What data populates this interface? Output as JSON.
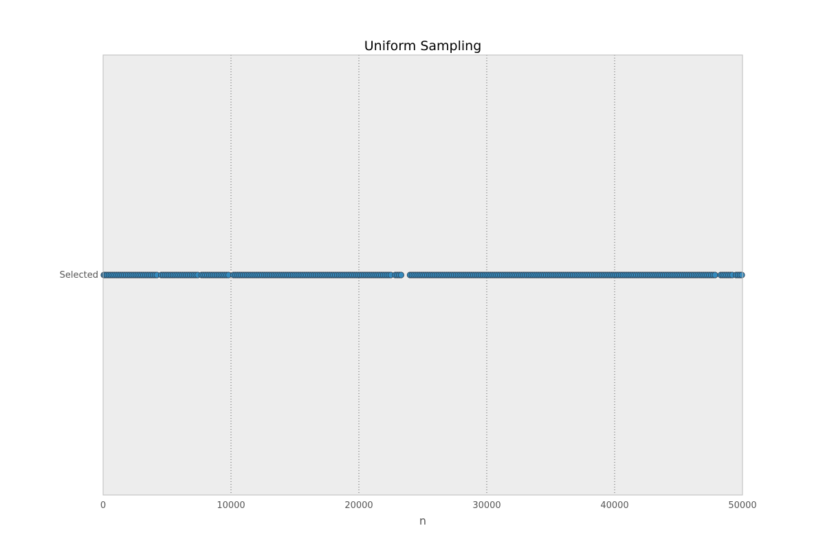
{
  "chart_data": {
    "type": "scatter",
    "title": "Uniform Sampling",
    "xlabel": "n",
    "ylabel": "",
    "xlim": [
      0,
      50000
    ],
    "xticks": [
      "0",
      "10000",
      "20000",
      "30000",
      "40000",
      "50000"
    ],
    "yticks": [
      "Selected"
    ],
    "grid": "x-dotted",
    "legend": "none",
    "colors": {
      "background": "#ededed",
      "frame": "#bcbcbc",
      "grid": "#555555",
      "marker_fill": "#348abd",
      "marker_edge": "#2b3a4a"
    },
    "series": [
      {
        "category": "Selected",
        "x": [
          0,
          150,
          300,
          450,
          600,
          750,
          900,
          1050,
          1200,
          1350,
          1500,
          1650,
          1800,
          1950,
          2100,
          2250,
          2400,
          2550,
          2700,
          2850,
          3000,
          3150,
          3300,
          3450,
          3600,
          3750,
          3900,
          4050,
          4200,
          4550,
          4700,
          4850,
          5000,
          5150,
          5300,
          5450,
          5600,
          5750,
          5900,
          6050,
          6200,
          6350,
          6500,
          6650,
          6800,
          6950,
          7100,
          7250,
          7400,
          7700,
          7850,
          8000,
          8150,
          8300,
          8450,
          8600,
          8750,
          8900,
          9050,
          9200,
          9350,
          9500,
          9650,
          9800,
          10200,
          10350,
          10500,
          10650,
          10800,
          10950,
          11100,
          11250,
          11400,
          11550,
          11700,
          11850,
          12000,
          12150,
          12300,
          12450,
          12600,
          12750,
          12900,
          13050,
          13200,
          13350,
          13500,
          13650,
          13800,
          13950,
          14100,
          14250,
          14400,
          14550,
          14700,
          14850,
          15000,
          15150,
          15300,
          15450,
          15600,
          15750,
          15900,
          16050,
          16200,
          16350,
          16500,
          16650,
          16800,
          16950,
          17100,
          17250,
          17400,
          17550,
          17700,
          17850,
          18000,
          18150,
          18300,
          18450,
          18600,
          18750,
          18900,
          19050,
          19200,
          19350,
          19500,
          19650,
          19800,
          19950,
          20100,
          20250,
          20400,
          20550,
          20700,
          20850,
          21000,
          21150,
          21300,
          21450,
          21600,
          21750,
          21900,
          22050,
          22200,
          22350,
          22500,
          22850,
          23000,
          23150,
          23300,
          24000,
          24150,
          24300,
          24450,
          24600,
          24750,
          24900,
          25050,
          25200,
          25350,
          25500,
          25650,
          25800,
          25950,
          26100,
          26250,
          26400,
          26550,
          26700,
          26850,
          27000,
          27150,
          27300,
          27450,
          27600,
          27750,
          27900,
          28050,
          28200,
          28350,
          28500,
          28650,
          28800,
          28950,
          29100,
          29250,
          29400,
          29550,
          29700,
          29850,
          30000,
          30150,
          30300,
          30450,
          30600,
          30750,
          30900,
          31050,
          31200,
          31350,
          31500,
          31650,
          31800,
          31950,
          32100,
          32250,
          32400,
          32550,
          32700,
          32850,
          33000,
          33150,
          33300,
          33450,
          33600,
          33750,
          33900,
          34050,
          34200,
          34350,
          34500,
          34650,
          34800,
          34950,
          35100,
          35250,
          35400,
          35550,
          35700,
          35850,
          36000,
          36150,
          36300,
          36450,
          36600,
          36750,
          36900,
          37050,
          37200,
          37350,
          37500,
          37650,
          37800,
          37950,
          38100,
          38250,
          38400,
          38550,
          38700,
          38850,
          39000,
          39150,
          39300,
          39450,
          39600,
          39750,
          39900,
          40050,
          40200,
          40350,
          40500,
          40650,
          40800,
          40950,
          41100,
          41250,
          41400,
          41550,
          41700,
          41850,
          42000,
          42150,
          42300,
          42450,
          42600,
          42750,
          42900,
          43050,
          43200,
          43350,
          43500,
          43650,
          43800,
          43950,
          44100,
          44250,
          44400,
          44550,
          44700,
          44850,
          45000,
          45150,
          45300,
          45450,
          45600,
          45750,
          45900,
          46050,
          46200,
          46350,
          46500,
          46650,
          46800,
          46950,
          47100,
          47250,
          47400,
          47550,
          47700,
          47850,
          48300,
          48450,
          48600,
          48750,
          48900,
          49050,
          49200,
          49500,
          49650,
          49800,
          49950
        ]
      }
    ]
  }
}
